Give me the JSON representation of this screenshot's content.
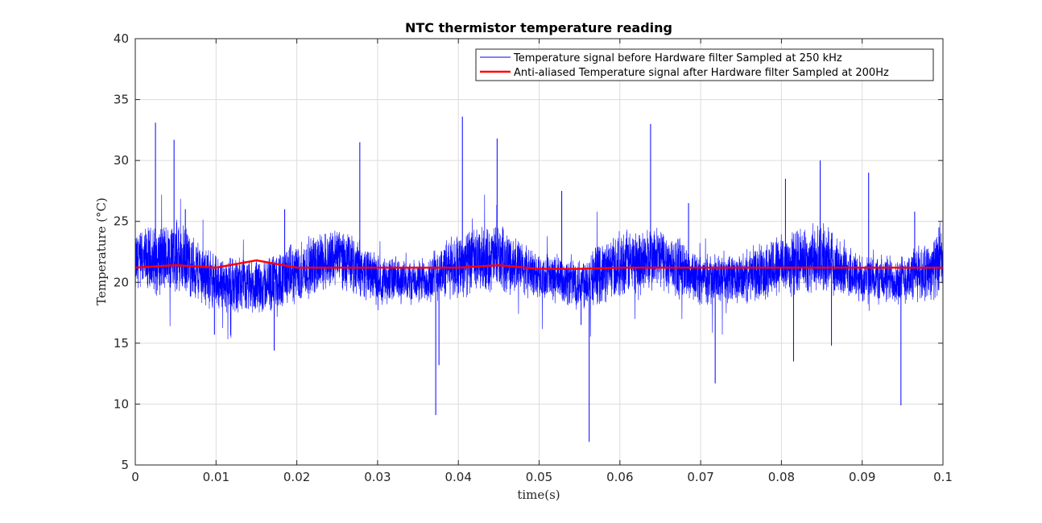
{
  "chart_data": {
    "type": "line",
    "title": "NTC thermistor temperature reading",
    "xlabel": "time(s)",
    "ylabel": "Temperature (°C)",
    "xlim": [
      0,
      0.1
    ],
    "ylim": [
      5,
      40
    ],
    "xticks": [
      0,
      0.01,
      0.02,
      0.03,
      0.04,
      0.05,
      0.06,
      0.07,
      0.08,
      0.09,
      0.1
    ],
    "xtick_labels": [
      "0",
      "0.01",
      "0.02",
      "0.03",
      "0.04",
      "0.05",
      "0.06",
      "0.07",
      "0.08",
      "0.09",
      "0.1"
    ],
    "yticks": [
      5,
      10,
      15,
      20,
      25,
      30,
      35,
      40
    ],
    "ytick_labels": [
      "5",
      "10",
      "15",
      "20",
      "25",
      "30",
      "35",
      "40"
    ],
    "grid": true,
    "legend_position": "top-right",
    "series": [
      {
        "name": "Temperature signal before Hardware filter Sampled at 250 kHz",
        "color": "#0000ff",
        "style": "thin",
        "description_values": {
          "envelope": [
            {
              "x": 0.0,
              "min": 18.5,
              "max": 24.5
            },
            {
              "x": 0.005,
              "min": 18.8,
              "max": 25.5
            },
            {
              "x": 0.01,
              "min": 17.5,
              "max": 22.5
            },
            {
              "x": 0.015,
              "min": 17.0,
              "max": 22.0
            },
            {
              "x": 0.02,
              "min": 18.0,
              "max": 23.5
            },
            {
              "x": 0.025,
              "min": 19.5,
              "max": 25.0
            },
            {
              "x": 0.03,
              "min": 18.0,
              "max": 22.5
            },
            {
              "x": 0.035,
              "min": 18.0,
              "max": 22.0
            },
            {
              "x": 0.04,
              "min": 18.5,
              "max": 24.5
            },
            {
              "x": 0.045,
              "min": 19.0,
              "max": 25.0
            },
            {
              "x": 0.05,
              "min": 18.5,
              "max": 22.5
            },
            {
              "x": 0.055,
              "min": 17.5,
              "max": 22.5
            },
            {
              "x": 0.06,
              "min": 18.5,
              "max": 24.5
            },
            {
              "x": 0.065,
              "min": 19.0,
              "max": 25.0
            },
            {
              "x": 0.07,
              "min": 18.0,
              "max": 22.5
            },
            {
              "x": 0.075,
              "min": 18.0,
              "max": 22.5
            },
            {
              "x": 0.08,
              "min": 18.5,
              "max": 24.5
            },
            {
              "x": 0.085,
              "min": 19.0,
              "max": 25.0
            },
            {
              "x": 0.09,
              "min": 18.0,
              "max": 22.5
            },
            {
              "x": 0.095,
              "min": 18.0,
              "max": 22.5
            },
            {
              "x": 0.1,
              "min": 18.5,
              "max": 24.5
            }
          ],
          "spikes": [
            {
              "x": 0.0025,
              "y": 33.1
            },
            {
              "x": 0.0048,
              "y": 31.7
            },
            {
              "x": 0.0062,
              "y": 26.0
            },
            {
              "x": 0.0098,
              "y": 15.7
            },
            {
              "x": 0.0172,
              "y": 14.4
            },
            {
              "x": 0.0185,
              "y": 26.0
            },
            {
              "x": 0.0278,
              "y": 31.5
            },
            {
              "x": 0.0372,
              "y": 9.1
            },
            {
              "x": 0.0376,
              "y": 13.2
            },
            {
              "x": 0.0405,
              "y": 33.6
            },
            {
              "x": 0.0448,
              "y": 31.8
            },
            {
              "x": 0.0528,
              "y": 27.5
            },
            {
              "x": 0.0552,
              "y": 16.5
            },
            {
              "x": 0.0562,
              "y": 6.9
            },
            {
              "x": 0.0638,
              "y": 33.0
            },
            {
              "x": 0.0685,
              "y": 26.5
            },
            {
              "x": 0.0718,
              "y": 11.7
            },
            {
              "x": 0.0805,
              "y": 28.5
            },
            {
              "x": 0.0815,
              "y": 13.5
            },
            {
              "x": 0.0848,
              "y": 30.0
            },
            {
              "x": 0.0862,
              "y": 14.8
            },
            {
              "x": 0.0908,
              "y": 29.0
            },
            {
              "x": 0.0948,
              "y": 9.9
            },
            {
              "x": 0.0965,
              "y": 25.8
            },
            {
              "x": 0.0995,
              "y": 24.5
            }
          ]
        }
      },
      {
        "name": "Anti-aliased Temperature signal after Hardware filter Sampled at 200Hz",
        "color": "#ff0000",
        "style": "thick",
        "x": [
          0,
          0.005,
          0.01,
          0.015,
          0.02,
          0.025,
          0.03,
          0.035,
          0.04,
          0.045,
          0.05,
          0.055,
          0.06,
          0.065,
          0.07,
          0.075,
          0.08,
          0.085,
          0.09,
          0.095,
          0.1
        ],
        "values": [
          21.2,
          21.4,
          21.2,
          21.8,
          21.2,
          21.2,
          21.2,
          21.2,
          21.2,
          21.4,
          21.1,
          21.1,
          21.2,
          21.2,
          21.2,
          21.2,
          21.2,
          21.2,
          21.2,
          21.2,
          21.2
        ]
      }
    ]
  }
}
